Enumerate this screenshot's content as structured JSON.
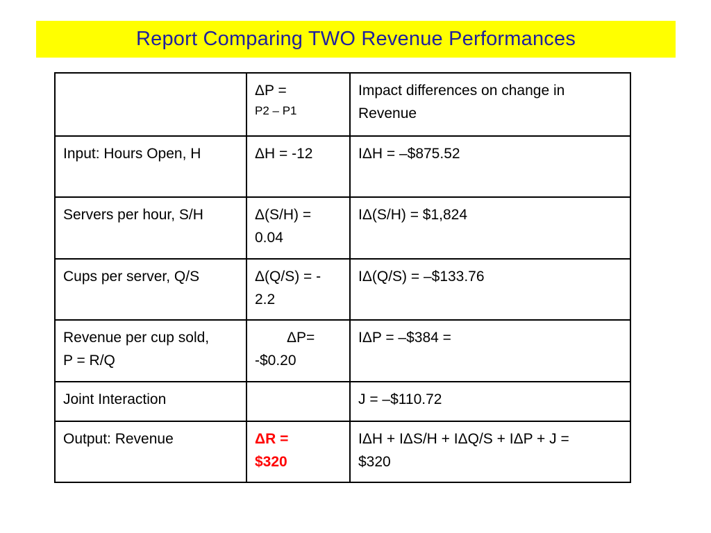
{
  "title": "Report Comparing TWO Revenue Performances",
  "header": {
    "col1": "",
    "col2_line1": "ΔP =",
    "col2_line2": "P2 – P1",
    "col3_line1": "Impact differences on change in",
    "col3_line2": "Revenue"
  },
  "rows": [
    {
      "label_line1": "Input: Hours Open, H",
      "delta_line1": "ΔH = -12",
      "impact_line1": "IΔH = –$875.52"
    },
    {
      "label_line1": "Servers per hour, S/H",
      "delta_line1": "Δ(S/H) =",
      "delta_line2": "0.04",
      "impact_line1": "IΔ(S/H) = $1,824"
    },
    {
      "label_line1": "Cups per server, Q/S",
      "delta_line1": "Δ(Q/S) = -",
      "delta_line2": "2.2",
      "impact_line1": "IΔ(Q/S) = –$133.76"
    },
    {
      "label_line1": "Revenue per cup sold,",
      "label_line2": "P = R/Q",
      "delta_line1": "ΔP=",
      "delta_line2": "-$0.20",
      "impact_line1": "IΔP = –$384 ="
    },
    {
      "label_line1": "Joint Interaction",
      "delta_line1": "",
      "impact_line1": "J = –$110.72"
    },
    {
      "label_line1": "Output: Revenue",
      "delta_line1": "ΔR =",
      "delta_line2": "$320",
      "impact_line1": "IΔH + IΔS/H + IΔQ/S + IΔP + J =",
      "impact_line2": "$320"
    }
  ],
  "colors": {
    "title_background": "#ffff00",
    "title_text": "#1f1f9f",
    "highlight": "#ff0000"
  }
}
